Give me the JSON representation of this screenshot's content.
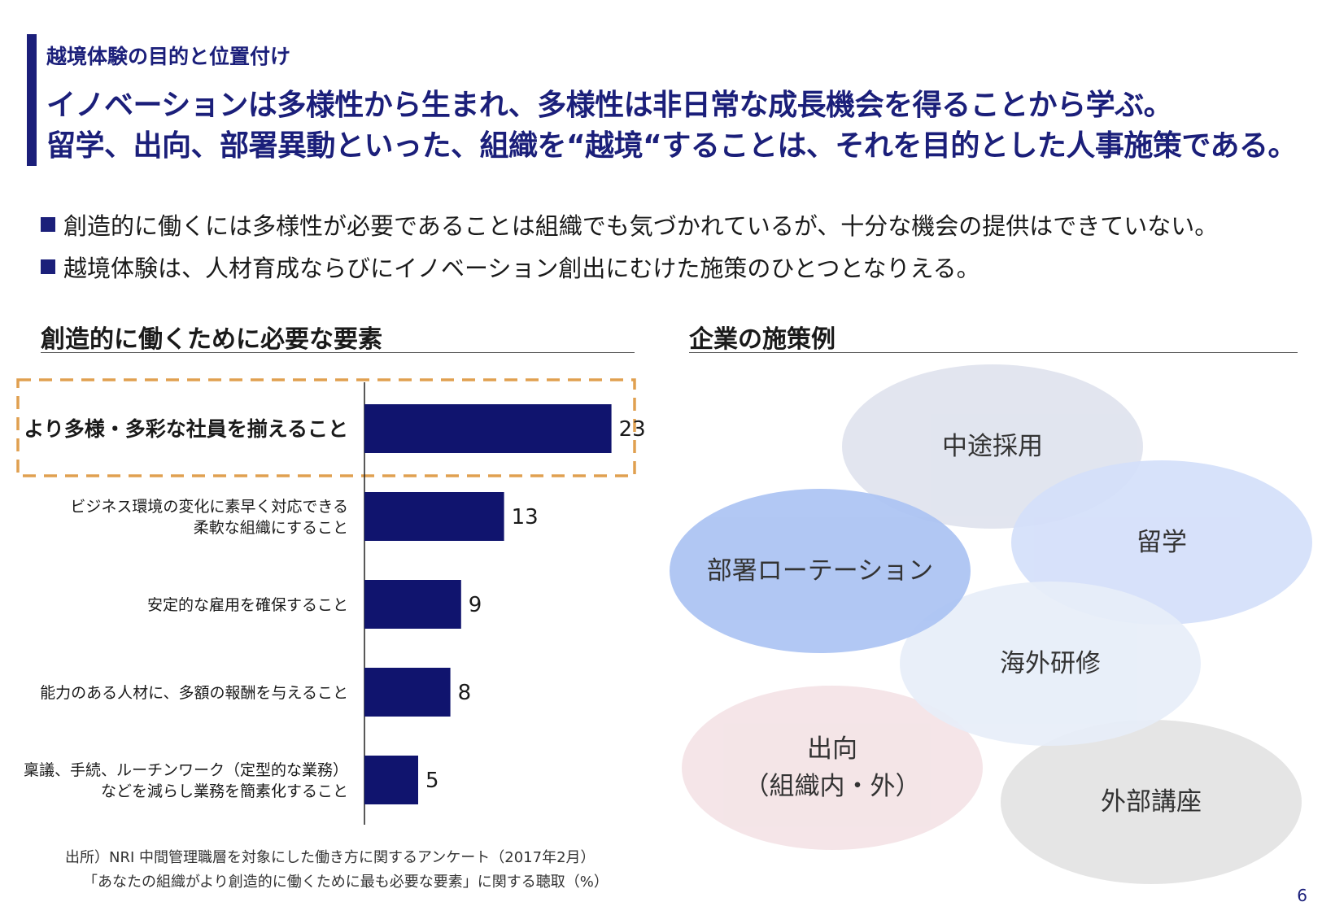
{
  "header": {
    "kicker": "越境体験の目的と位置付け",
    "headline_line1": "イノベーションは多様性から生まれ、多様性は非日常な成長機会を得ることから学ぶ。",
    "headline_line2": "留学、出向、部署異動といった、組織を“越境“することは、それを目的とした人事施策である。"
  },
  "bullets": [
    "創造的に働くには多様性が必要であることは組織でも気づかれているが、十分な機会の提供はできていない。",
    "越境体験は、人材育成ならびにイノベーション創出にむけた施策のひとつとなりえる。"
  ],
  "left_section": {
    "title": "創造的に働くために必要な要素"
  },
  "right_section": {
    "title": "企業の施策例"
  },
  "chart_data": {
    "type": "bar",
    "orientation": "horizontal",
    "categories": [
      [
        "より多様・多彩な社員を揃えること"
      ],
      [
        "ビジネス環境の変化に素早く対応できる",
        "柔軟な組織にすること"
      ],
      [
        "安定的な雇用を確保すること"
      ],
      [
        "能力のある人材に、多額の報酬を与えること"
      ],
      [
        "稟議、手続、ルーチンワーク（定型的な業務）",
        "などを減らし業務を簡素化すること"
      ]
    ],
    "values": [
      23,
      13,
      9,
      8,
      5
    ],
    "value_labels": [
      "23",
      "13",
      "9",
      "8",
      "5"
    ],
    "highlight_index": 0,
    "bar_color": "#10146e",
    "highlight_color": "#e0a050",
    "xlim": [
      0,
      25
    ]
  },
  "source": {
    "line1": "出所）NRI 中間管理職層を対象にした働き方に関するアンケート（2017年2月）",
    "line2": "「あなたの組織がより創造的に働くために最も必要な要素」に関する聴取（%）"
  },
  "measures": [
    {
      "label": "中途採用",
      "color": "#dfe3ee"
    },
    {
      "label": "留学",
      "color": "#d4dffa"
    },
    {
      "label": "部署ローテーション",
      "color": "#abc3f3"
    },
    {
      "label": "海外研修",
      "color": "#e7eef9"
    },
    {
      "label": "出向\n（組織内・外）",
      "color": "#f4e3e6"
    },
    {
      "label": "外部講座",
      "color": "#e3e3e3"
    }
  ],
  "page_number": "6"
}
